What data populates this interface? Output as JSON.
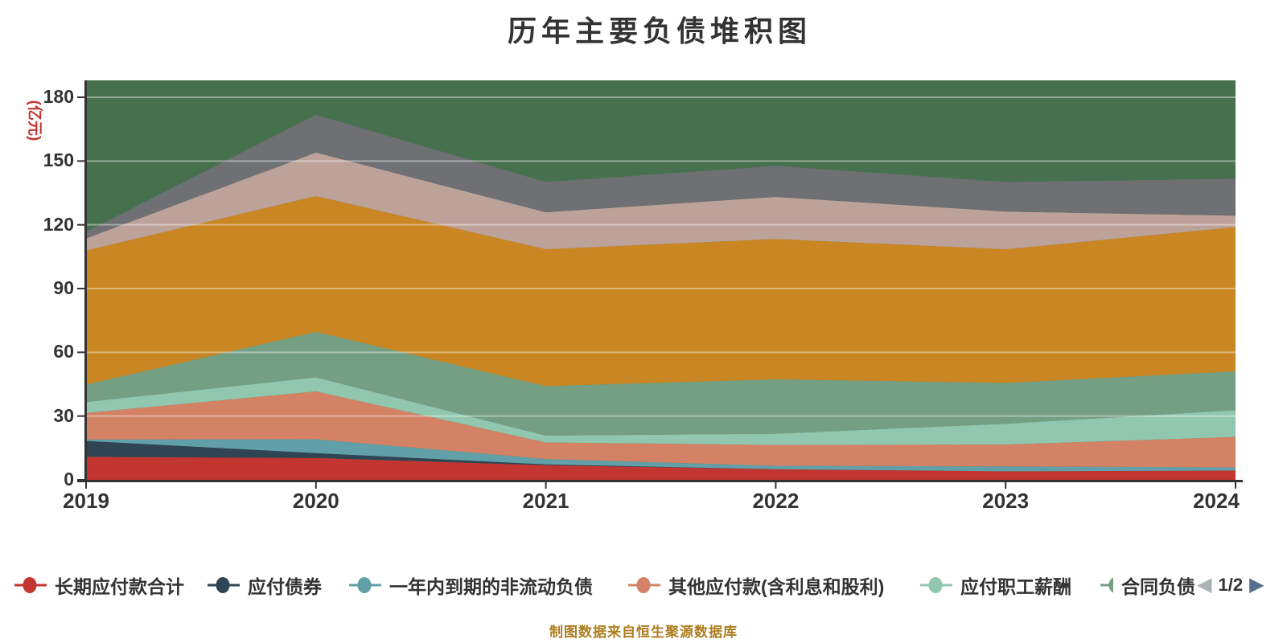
{
  "title": "历年主要负债堆积图",
  "footer": "制图数据来自恒生聚源数据库",
  "y_axis": {
    "unit": "(亿元)",
    "ticks": [
      "0",
      "30",
      "60",
      "90",
      "120",
      "150",
      "180"
    ]
  },
  "x_axis": {
    "ticks": [
      "2019",
      "2020",
      "2021",
      "2022",
      "2023",
      "2024"
    ]
  },
  "legend": {
    "page": "1/2",
    "prev_icon": "◀",
    "next_icon": "▶",
    "items": [
      {
        "label": "长期应付款合计",
        "color": "#c23531"
      },
      {
        "label": "应付债券",
        "color": "#2f4554"
      },
      {
        "label": "一年内到期的非流动负债",
        "color": "#61a0a8"
      },
      {
        "label": "其他应付款(含利息和股利)",
        "color": "#d48265"
      },
      {
        "label": "应付职工薪酬",
        "color": "#91c7ae"
      },
      {
        "label": "合同负债",
        "color": "#749f83"
      }
    ]
  },
  "colors": {
    "plot_bg": "#47714e",
    "axis": "#333333",
    "gridline": "rgba(255,255,255,0.40)",
    "title_text": "#333333",
    "footer_text": "#ad7d1e",
    "unit_text": "#c23531",
    "pager_prev": "#a9b1b5",
    "pager_next": "#54708c"
  },
  "chart_data": {
    "type": "area",
    "stacked": true,
    "title": "历年主要负债堆积图",
    "categories": [
      "2019",
      "2020",
      "2021",
      "2022",
      "2023",
      "2024"
    ],
    "ylabel": "(亿元)",
    "ylim": [
      0,
      180
    ],
    "grid": true,
    "legend_position": "bottom",
    "legend_pagination": "1/2",
    "series": [
      {
        "name": "长期应付款合计",
        "color": "#c23531",
        "values": [
          10.8,
          10.3,
          6.9,
          5.0,
          4.0,
          4.4
        ]
      },
      {
        "name": "应付债券",
        "color": "#2f4554",
        "values": [
          7.5,
          2.3,
          0.4,
          0,
          0,
          0
        ]
      },
      {
        "name": "一年内到期的非流动负债",
        "color": "#61a0a8",
        "values": [
          0.7,
          6.5,
          2.5,
          1.6,
          2.3,
          1.5
        ]
      },
      {
        "name": "其他应付款(含利息和股利)",
        "color": "#d48265",
        "values": [
          12.5,
          22.5,
          7.8,
          9.8,
          10.3,
          14.3
        ]
      },
      {
        "name": "应付职工薪酬",
        "color": "#91c7ae",
        "values": [
          5.1,
          6.6,
          3.2,
          5.3,
          9.8,
          12.6
        ]
      },
      {
        "name": "合同负债",
        "color": "#749f83",
        "values": [
          8.2,
          21.4,
          23.3,
          25.6,
          19.2,
          18.3
        ]
      },
      {
        "name": "未标注系列(图例第2页,橙色)",
        "color": "#ca8622",
        "values": [
          63.1,
          63.9,
          64.4,
          66.0,
          62.9,
          67.8
        ]
      },
      {
        "name": "未标注系列(图例第2页,粉灰色)",
        "color": "#bda29a",
        "values": [
          5.7,
          20.5,
          17.4,
          19.8,
          17.7,
          5.4
        ]
      },
      {
        "name": "未标注系列(图例第2页,深灰色)",
        "color": "#6e7074",
        "values": [
          3.1,
          17.7,
          14.2,
          14.6,
          13.9,
          17.3
        ]
      }
    ],
    "stack_totals": [
      116.7,
      171.7,
      140.1,
      147.7,
      140.1,
      141.6
    ]
  }
}
